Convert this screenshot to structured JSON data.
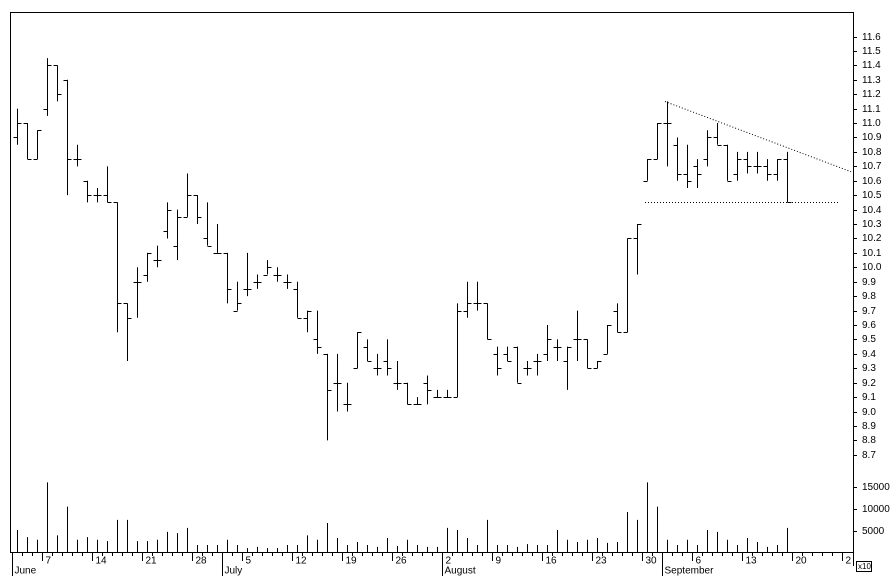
{
  "chart_data": {
    "type": "ohlc",
    "categories": [
      null,
      null,
      null,
      "7",
      null,
      null,
      null,
      null,
      "14",
      null,
      null,
      null,
      null,
      "21",
      null,
      null,
      null,
      null,
      "28",
      null,
      null,
      null,
      null,
      "5",
      null,
      null,
      null,
      null,
      "12",
      null,
      null,
      null,
      null,
      "19",
      null,
      null,
      null,
      null,
      "26",
      null,
      null,
      null,
      null,
      "2",
      null,
      null,
      null,
      null,
      "9",
      null,
      null,
      null,
      null,
      "16",
      null,
      null,
      null,
      null,
      "23",
      null,
      null,
      null,
      null,
      "30",
      null,
      null,
      null,
      null,
      "6",
      null,
      null,
      null,
      null,
      "13",
      null,
      null,
      null,
      null,
      "20",
      null,
      null,
      null,
      null,
      "2"
    ],
    "months": [
      {
        "label": "June",
        "start": 0
      },
      {
        "label": "July",
        "start": 21
      },
      {
        "label": "August",
        "start": 43
      },
      {
        "label": "September",
        "start": 65
      }
    ],
    "open": [
      10.9,
      11.0,
      10.75,
      11.1,
      11.4,
      11.3,
      10.75,
      10.6,
      10.5,
      10.5,
      10.45,
      9.75,
      9.9,
      9.95,
      10.05,
      10.25,
      10.15,
      10.35,
      10.5,
      10.2,
      10.1,
      10.1,
      9.7,
      9.85,
      9.9,
      9.95,
      9.95,
      9.9,
      9.85,
      9.65,
      9.5,
      9.4,
      9.2,
      9.05,
      9.3,
      9.45,
      9.3,
      9.35,
      9.2,
      9.2,
      9.05,
      9.2,
      9.1,
      9.1,
      9.1,
      9.7,
      9.75,
      9.75,
      9.4,
      9.4,
      9.45,
      9.3,
      9.35,
      9.4,
      9.45,
      9.35,
      9.5,
      9.5,
      9.3,
      9.4,
      9.7,
      9.55,
      10.2,
      10.6,
      10.75,
      11.0,
      10.85,
      10.65,
      10.7,
      10.75,
      10.9,
      10.85,
      10.65,
      10.75,
      10.7,
      10.7,
      10.65,
      10.75,
      null,
      null,
      null,
      null,
      null,
      null
    ],
    "high": [
      11.1,
      11.0,
      10.95,
      11.45,
      11.4,
      11.3,
      10.85,
      10.6,
      10.55,
      10.7,
      10.45,
      9.75,
      10.0,
      10.1,
      10.15,
      10.45,
      10.4,
      10.65,
      10.5,
      10.45,
      10.3,
      10.1,
      9.9,
      10.1,
      9.95,
      10.05,
      10.0,
      9.95,
      9.9,
      9.7,
      9.7,
      9.4,
      9.4,
      9.2,
      9.55,
      9.5,
      9.4,
      9.5,
      9.35,
      9.2,
      9.1,
      9.25,
      9.15,
      9.15,
      9.75,
      9.9,
      9.9,
      9.75,
      9.45,
      9.45,
      9.45,
      9.35,
      9.4,
      9.6,
      9.5,
      9.45,
      9.7,
      9.5,
      9.35,
      9.6,
      9.75,
      10.2,
      10.3,
      10.75,
      11.0,
      11.15,
      10.9,
      10.85,
      10.75,
      10.95,
      11.0,
      10.85,
      10.8,
      10.8,
      10.8,
      10.75,
      10.75,
      10.8,
      null,
      null,
      null,
      null,
      null,
      null
    ],
    "low": [
      10.85,
      10.75,
      10.75,
      11.05,
      11.15,
      10.5,
      10.7,
      10.45,
      10.45,
      10.45,
      9.55,
      9.35,
      9.65,
      9.9,
      10.0,
      10.2,
      10.05,
      10.35,
      10.3,
      10.15,
      10.1,
      9.75,
      9.7,
      9.8,
      9.85,
      9.95,
      9.9,
      9.85,
      9.65,
      9.55,
      9.4,
      8.8,
      9.0,
      9.0,
      9.3,
      9.35,
      9.25,
      9.25,
      9.15,
      9.05,
      9.05,
      9.05,
      9.1,
      9.1,
      9.1,
      9.65,
      9.7,
      9.5,
      9.25,
      9.35,
      9.2,
      9.25,
      9.25,
      9.35,
      9.35,
      9.15,
      9.35,
      9.3,
      9.3,
      9.4,
      9.55,
      9.55,
      9.95,
      10.6,
      10.75,
      10.7,
      10.6,
      10.55,
      10.55,
      10.7,
      10.85,
      10.6,
      10.6,
      10.65,
      10.65,
      10.6,
      10.6,
      10.45,
      null,
      null,
      null,
      null,
      null,
      null
    ],
    "close": [
      11.0,
      10.75,
      10.95,
      11.4,
      11.2,
      10.75,
      10.75,
      10.5,
      10.5,
      10.45,
      9.75,
      9.65,
      9.9,
      10.1,
      10.05,
      10.4,
      10.35,
      10.5,
      10.35,
      10.15,
      10.1,
      9.85,
      9.75,
      9.85,
      9.9,
      10.0,
      9.95,
      9.9,
      9.65,
      9.7,
      9.45,
      9.15,
      9.2,
      9.05,
      9.55,
      9.35,
      9.3,
      9.3,
      9.2,
      9.05,
      9.05,
      9.15,
      9.1,
      9.1,
      9.7,
      9.75,
      9.75,
      9.5,
      9.3,
      9.35,
      9.2,
      9.3,
      9.35,
      9.5,
      9.45,
      9.45,
      9.5,
      9.3,
      9.35,
      9.6,
      9.55,
      10.2,
      10.3,
      10.75,
      11.0,
      11.0,
      10.65,
      10.6,
      10.65,
      10.9,
      10.85,
      10.6,
      10.75,
      10.7,
      10.7,
      10.65,
      10.75,
      10.45,
      null,
      null,
      null,
      null,
      null,
      null
    ],
    "volume": [
      5200,
      3600,
      3000,
      16000,
      4000,
      10500,
      3000,
      3600,
      3000,
      2700,
      7500,
      7500,
      2700,
      2700,
      3000,
      4800,
      4500,
      5700,
      1800,
      1800,
      1800,
      3000,
      1800,
      1100,
      1400,
      1100,
      1100,
      1800,
      1800,
      4000,
      3000,
      6800,
      3400,
      1800,
      2500,
      1800,
      1400,
      3400,
      1600,
      3000,
      1800,
      1400,
      1400,
      5700,
      5200,
      3400,
      1800,
      7500,
      1800,
      1800,
      1400,
      2000,
      1800,
      1800,
      5200,
      3000,
      2500,
      3000,
      3400,
      2300,
      2500,
      9300,
      7500,
      16000,
      10500,
      3000,
      1800,
      3000,
      1800,
      5200,
      4800,
      3000,
      1800,
      3400,
      2500,
      1400,
      1800,
      5700,
      null,
      null,
      null,
      null,
      null,
      null
    ],
    "color": "#000000",
    "xlim": [
      -0.7,
      83.6
    ],
    "ylim": [
      8.56,
      11.77
    ],
    "yticks": [
      8.7,
      8.8,
      8.9,
      {
        "value": 9,
        "label": "9.0"
      },
      9.1,
      9.2,
      9.3,
      9.4,
      9.5,
      9.6,
      9.7,
      9.8,
      9.9,
      {
        "value": 10,
        "label": "10.0"
      },
      10.1,
      10.2,
      10.3,
      10.4,
      10.5,
      10.6,
      10.7,
      10.8,
      10.9,
      {
        "value": 11,
        "label": "11.0"
      },
      11.1,
      11.2,
      11.3,
      11.4,
      11.5,
      11.6
    ],
    "y2lim": [
      0,
      17000
    ],
    "y2ticks": [
      5000,
      10000,
      15000
    ],
    "y2_unit": "x10",
    "lines": [
      {
        "x": [
          64.8,
          83.6
        ],
        "y": [
          11.15,
          10.66
        ]
      },
      {
        "x": [
          62.8,
          82.3
        ],
        "y": [
          10.45,
          10.45
        ]
      }
    ]
  }
}
